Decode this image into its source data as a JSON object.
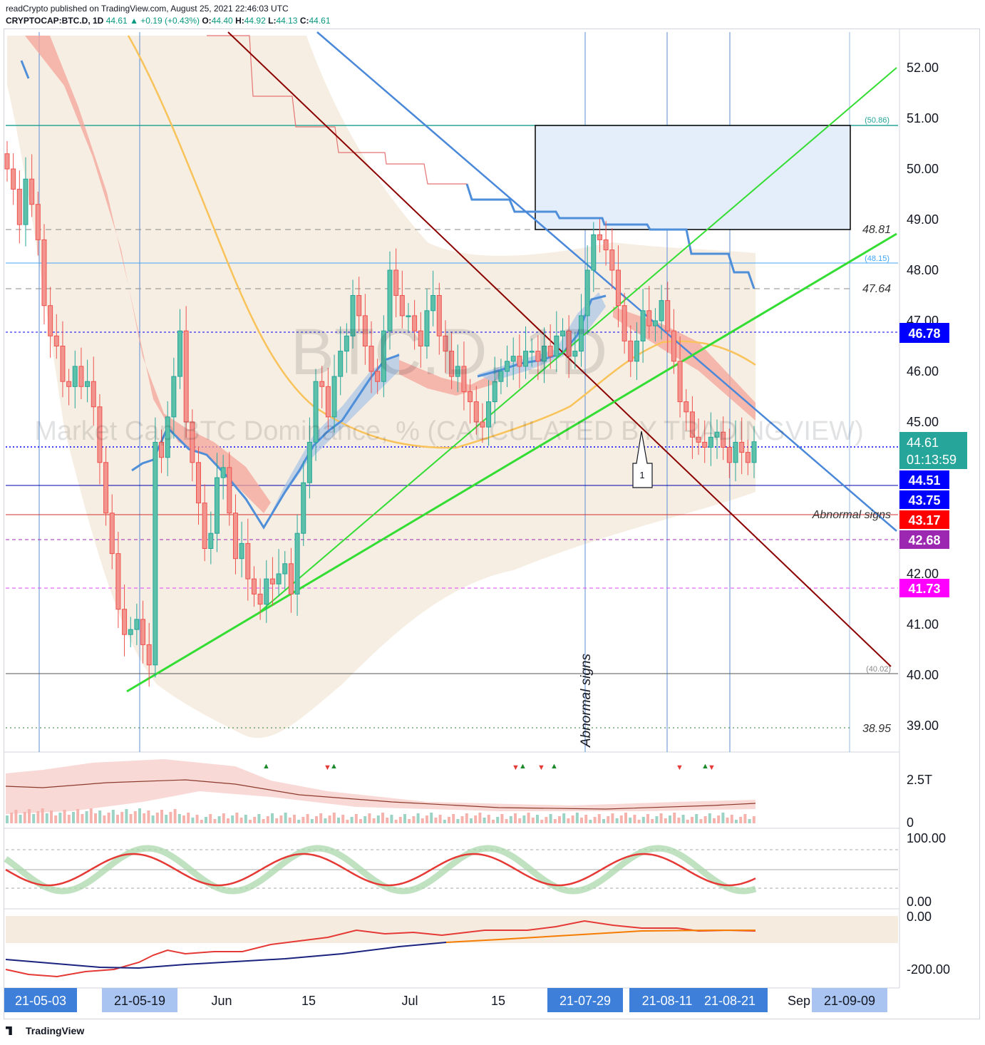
{
  "header": {
    "line1": "readCrypto published on TradingView.com, August 25, 2021 22:46:03 UTC",
    "symbol": "CRYPTOCAP:BTC.D, 1D",
    "last": "44.61",
    "change": "▲ +0.19 (+0.43%)",
    "o_label": "O:",
    "o": "44.40",
    "h_label": "H:",
    "h": "44.92",
    "l_label": "L:",
    "l": "44.13",
    "c_label": "C:",
    "c": "44.61"
  },
  "watermark": {
    "big": "BTC.D, 1D",
    "long": "Market Cap BTC Dominance, % (CALCULATED BY TRADINGVIEW)"
  },
  "price_axis": {
    "ticks": [
      "52.00",
      "51.00",
      "50.00",
      "49.00",
      "48.00",
      "47.00",
      "46.00",
      "45.00",
      "42.00",
      "41.00",
      "40.00",
      "39.00"
    ]
  },
  "price_labels": [
    {
      "text": "46.78",
      "color": "#0000ff"
    },
    {
      "text": "44.61",
      "text2": "01:13:59",
      "color": "#26a69a"
    },
    {
      "text": "44.51",
      "color": "#0000ff"
    },
    {
      "text": "43.75",
      "color": "#0000ff"
    },
    {
      "text": "43.17",
      "color": "#ff0000"
    },
    {
      "text": "42.68",
      "color": "#9c27b0"
    },
    {
      "text": "41.73",
      "color": "#ff00ff"
    }
  ],
  "level_texts": {
    "l5086": "(50.86)",
    "l4881": "48.81",
    "l4815": "(48.15)",
    "l4764": "47.64",
    "l3895": "38.95",
    "l4002": "(40.02)",
    "abnormal_h": "Abnormal signs",
    "abnormal_v": "Abnormal signs",
    "callout": "1"
  },
  "volume_axis": {
    "ticks": [
      "2.5T",
      "0"
    ]
  },
  "osc_axis": {
    "ticks": [
      "100.00",
      "0.00"
    ]
  },
  "bottom_axis": {
    "ticks": [
      "0.00",
      "-200.00"
    ]
  },
  "time_axis": {
    "labels": [
      {
        "text": "21-05-03",
        "hl": "dark"
      },
      {
        "text": "21-05-19",
        "hl": "light"
      },
      {
        "text": "Jun",
        "hl": "none"
      },
      {
        "text": "15",
        "hl": "none"
      },
      {
        "text": "Jul",
        "hl": "none"
      },
      {
        "text": "15",
        "hl": "none"
      },
      {
        "text": "21-07-29",
        "hl": "dark"
      },
      {
        "text": "21-08-11",
        "hl": "dark"
      },
      {
        "text": "21-08-21",
        "hl": "dark"
      },
      {
        "text": "Sep",
        "hl": "none"
      },
      {
        "text": "21-09-09",
        "hl": "light"
      }
    ]
  },
  "footer": {
    "brand": "TradingView"
  },
  "chart_data": {
    "type": "candlestick",
    "symbol": "CRYPTOCAP:BTC.D",
    "interval": "1D",
    "ylim": [
      38.5,
      52.5
    ],
    "closes": [
      50.0,
      49.6,
      48.9,
      49.8,
      49.3,
      48.6,
      47.3,
      46.7,
      46.5,
      45.8,
      45.7,
      46.1,
      45.7,
      45.8,
      45.3,
      44.2,
      43.2,
      42.4,
      41.3,
      40.8,
      40.9,
      41.1,
      40.6,
      40.2,
      44.6,
      44.3,
      45.1,
      45.9,
      46.8,
      45.0,
      44.2,
      43.4,
      42.5,
      42.8,
      43.9,
      44.1,
      43.2,
      42.3,
      42.6,
      41.9,
      41.6,
      41.4,
      41.9,
      41.8,
      42.0,
      42.2,
      41.6,
      42.8,
      43.8,
      44.6,
      45.8,
      45.7,
      45.1,
      45.9,
      46.4,
      46.7,
      47.5,
      47.1,
      46.5,
      46.0,
      45.8,
      46.8,
      48.0,
      47.5,
      47.1,
      47.1,
      46.8,
      46.5,
      47.2,
      47.5,
      46.7,
      46.4,
      45.9,
      46.1,
      45.6,
      45.4,
      45.0,
      44.9,
      45.4,
      45.8,
      46.0,
      46.2,
      46.3,
      46.1,
      46.4,
      46.4,
      46.2,
      46.5,
      46.3,
      46.7,
      46.8,
      46.3,
      46.4,
      47.1,
      48.0,
      48.7,
      48.6,
      48.4,
      48.0,
      47.3,
      46.6,
      46.2,
      46.6,
      47.2,
      46.9,
      47.0,
      47.4,
      46.8,
      46.2,
      45.4,
      45.2,
      44.7,
      44.6,
      44.5,
      44.7,
      44.8,
      44.5,
      44.2,
      44.6,
      44.4,
      44.2,
      44.61
    ],
    "levels": {
      "rect_top": 50.86,
      "rect_bottom": 48.81,
      "h48_15": 48.15,
      "h47_64": 47.64,
      "h46_78": 46.78,
      "h44_51": 44.51,
      "h43_75": 43.75,
      "h43_17": 43.17,
      "h42_68": 42.68,
      "h41_73": 41.73,
      "h40_02": 40.02,
      "h38_95": 38.95
    }
  }
}
